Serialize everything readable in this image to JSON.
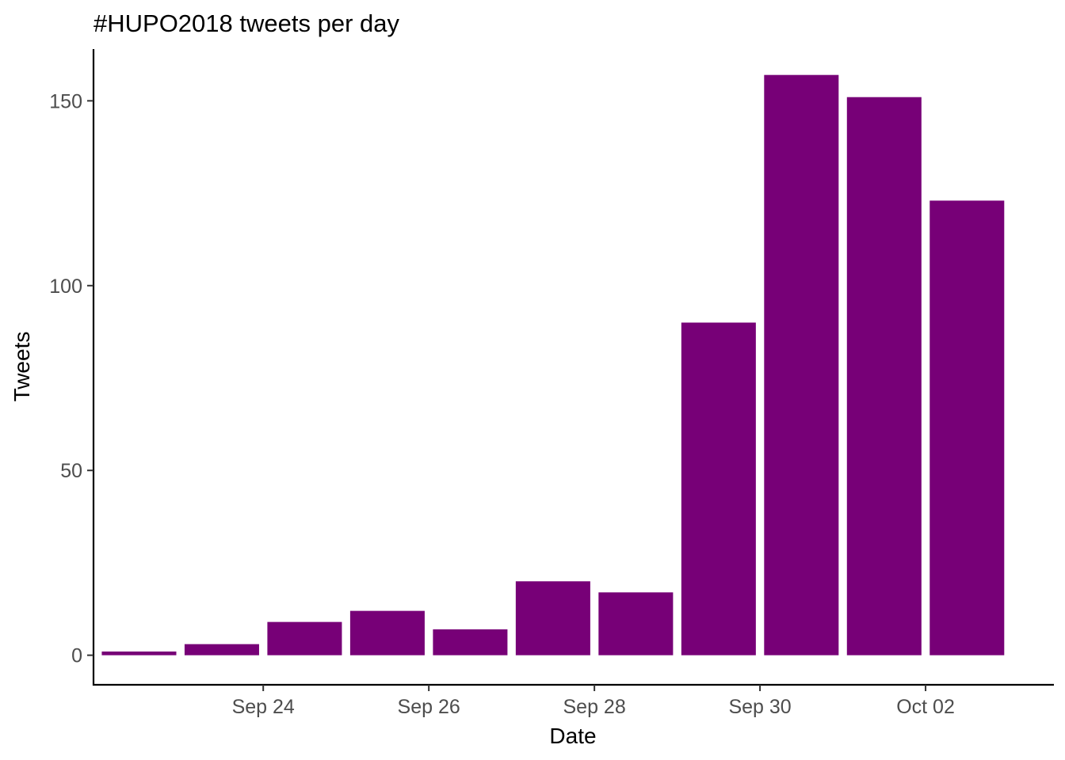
{
  "chart_data": {
    "type": "bar",
    "title": "#HUPO2018 tweets per day",
    "xlabel": "Date",
    "ylabel": "Tweets",
    "categories": [
      "2018-09-23",
      "2018-09-24",
      "2018-09-25",
      "2018-09-26",
      "2018-09-27",
      "2018-09-28",
      "2018-09-29",
      "2018-09-30",
      "2018-10-01",
      "2018-10-02",
      "2018-10-03"
    ],
    "values": [
      1,
      3,
      9,
      12,
      7,
      20,
      17,
      90,
      157,
      151,
      123
    ],
    "ylim": [
      -8,
      164
    ],
    "yticks": [
      0,
      50,
      100,
      150
    ],
    "xticks": [
      {
        "date": "2018-09-24",
        "label": "Sep 24"
      },
      {
        "date": "2018-09-26",
        "label": "Sep 26"
      },
      {
        "date": "2018-09-28",
        "label": "Sep 28"
      },
      {
        "date": "2018-09-30",
        "label": "Sep 30"
      },
      {
        "date": "2018-10-02",
        "label": "Oct 02"
      }
    ],
    "bar_color": "#770077",
    "grid": false,
    "legend": "none"
  }
}
